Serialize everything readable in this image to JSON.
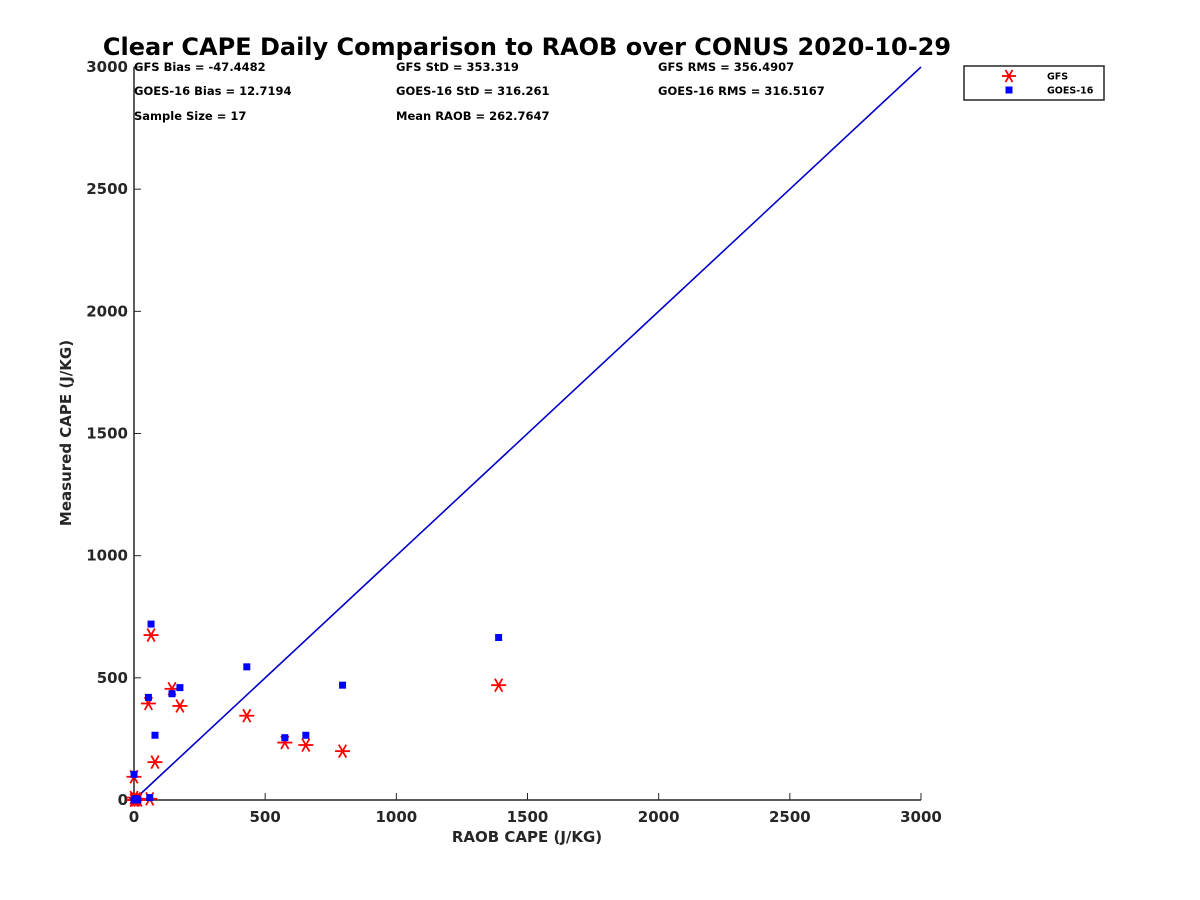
{
  "chart_data": {
    "type": "scatter",
    "title": "Clear CAPE Daily Comparison to RAOB over CONUS 2020-10-29",
    "xlabel": "RAOB CAPE (J/KG)",
    "ylabel": "Measured CAPE (J/KG)",
    "xlim": [
      0,
      3000
    ],
    "ylim": [
      0,
      3000
    ],
    "xticks": [
      "0",
      "500",
      "1000",
      "1500",
      "2000",
      "2500",
      "3000"
    ],
    "yticks": [
      "0",
      "500",
      "1000",
      "1500",
      "2000",
      "2500",
      "3000"
    ],
    "grid": false,
    "legend_position": "top-right",
    "reference_line": {
      "x": [
        0,
        3000
      ],
      "y": [
        0,
        3000
      ],
      "color": "#0000cc"
    },
    "stats": [
      [
        "GFS Bias = -47.4482",
        "GFS StD = 353.319",
        "GFS RMS = 356.4907"
      ],
      [
        "GOES-16 Bias = 12.7194",
        "GOES-16 StD = 316.261",
        "GOES-16 RMS = 316.5167"
      ],
      [
        "Sample Size = 17",
        "Mean RAOB = 262.7647",
        ""
      ]
    ],
    "series": [
      {
        "name": "GFS",
        "marker": "asterisk",
        "color": "#ff0000",
        "x": [
          0,
          0,
          5,
          10,
          55,
          65,
          80,
          145,
          175,
          430,
          575,
          655,
          795,
          1390,
          0,
          15,
          60
        ],
        "y": [
          95,
          10,
          0,
          5,
          395,
          675,
          155,
          455,
          385,
          345,
          235,
          225,
          200,
          470,
          0,
          0,
          5
        ]
      },
      {
        "name": "GOES-16",
        "marker": "square",
        "color": "#0000ff",
        "x": [
          0,
          0,
          5,
          10,
          55,
          65,
          80,
          145,
          175,
          430,
          575,
          655,
          795,
          1390,
          0,
          15,
          60
        ],
        "y": [
          105,
          0,
          5,
          5,
          420,
          720,
          265,
          435,
          460,
          545,
          255,
          265,
          470,
          665,
          0,
          0,
          10
        ]
      }
    ]
  }
}
